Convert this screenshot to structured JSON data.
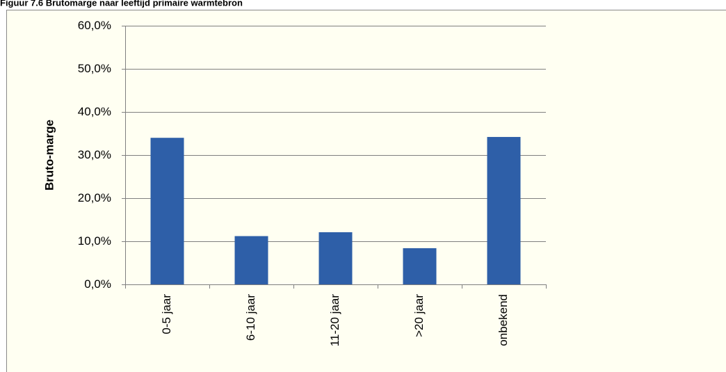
{
  "chart_data": {
    "type": "bar",
    "title": "Figuur 7.6 Brutomarge naar leeftijd primaire warmtebron",
    "y_label": "Bruto-marge",
    "categories": [
      "0-5 jaar",
      "6-10 jaar",
      "11-20 jaar",
      ">20 jaar",
      "onbekend"
    ],
    "values": [
      34.0,
      11.2,
      12.1,
      8.4,
      34.2
    ],
    "color": "#2e5fa8",
    "ylim": [
      0,
      60
    ],
    "yticks": [
      {
        "value": 0,
        "label": "0,0%"
      },
      {
        "value": 10,
        "label": "10,0%"
      },
      {
        "value": 20,
        "label": "20,0%"
      },
      {
        "value": 30,
        "label": "30,0%"
      },
      {
        "value": 40,
        "label": "40,0%"
      },
      {
        "value": 50,
        "label": "50,0%"
      },
      {
        "value": 60,
        "label": "60,0%"
      }
    ],
    "grid": true
  }
}
